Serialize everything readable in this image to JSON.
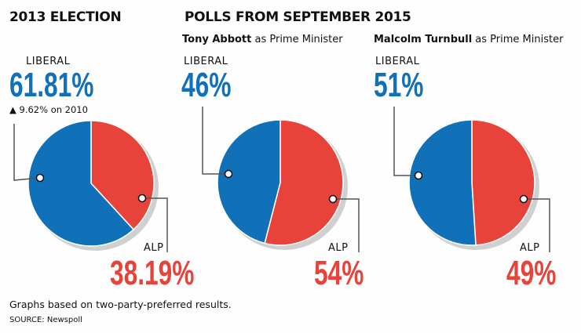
{
  "headings": {
    "election": "2013 ELECTION",
    "polls": "POLLS FROM SEPTEMBER 2015"
  },
  "change_note": "▲ 9.62% on 2010",
  "footnote": "Graphs based on two-party-preferred results.",
  "source": "SOURCE: Newspoll",
  "colors": {
    "liberal": "#1070b8",
    "alp": "#e8433a",
    "shadow": "#cfd0cf"
  },
  "chart_data": [
    {
      "type": "pie",
      "title": "2013 ELECTION",
      "subtitle_bold": "",
      "subtitle": "",
      "slices": [
        {
          "label": "LIBERAL",
          "value": 61.81,
          "display": "61.81%"
        },
        {
          "label": "ALP",
          "value": 38.19,
          "display": "38.19%"
        }
      ]
    },
    {
      "type": "pie",
      "title": "",
      "subtitle_bold": "Tony Abbott",
      "subtitle": " as Prime Minister",
      "slices": [
        {
          "label": "LIBERAL",
          "value": 46,
          "display": "46%"
        },
        {
          "label": "ALP",
          "value": 54,
          "display": "54%"
        }
      ]
    },
    {
      "type": "pie",
      "title": "",
      "subtitle_bold": "Malcolm Turnbull",
      "subtitle": " as Prime Minister",
      "slices": [
        {
          "label": "LIBERAL",
          "value": 51,
          "display": "51%"
        },
        {
          "label": "ALP",
          "value": 49,
          "display": "49%"
        }
      ]
    }
  ]
}
